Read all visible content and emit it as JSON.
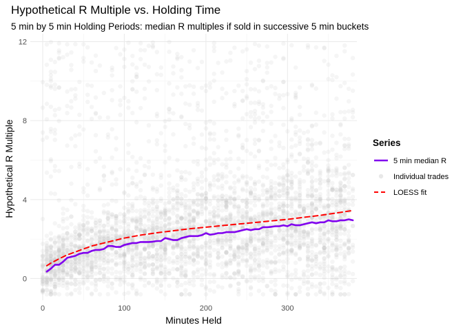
{
  "chart_data": {
    "type": "scatter",
    "title": "Hypothetical R Multiple vs. Holding Time",
    "subtitle": "5 min by 5 min Holding Periods: median R multiples if sold in successive 5 min buckets",
    "xlabel": "Minutes Held",
    "ylabel": "Hypothetical R Multiple",
    "xlim": [
      0,
      385
    ],
    "ylim": [
      -1.1,
      12.4
    ],
    "x_ticks": [
      0,
      100,
      200,
      300
    ],
    "y_ticks": [
      0,
      4,
      8,
      12
    ],
    "grid": true,
    "legend": {
      "title": "Series",
      "position": "right"
    },
    "series": [
      {
        "name": "5 min median R",
        "kind": "line",
        "color": "#8000ee",
        "style": "solid",
        "x": [
          5,
          10,
          15,
          20,
          25,
          30,
          35,
          40,
          45,
          50,
          55,
          60,
          65,
          70,
          75,
          80,
          85,
          90,
          95,
          100,
          105,
          110,
          115,
          120,
          125,
          130,
          135,
          140,
          145,
          150,
          155,
          160,
          165,
          170,
          175,
          180,
          185,
          190,
          195,
          200,
          205,
          210,
          215,
          220,
          225,
          230,
          235,
          240,
          245,
          250,
          255,
          260,
          265,
          270,
          275,
          280,
          285,
          290,
          295,
          300,
          305,
          310,
          315,
          320,
          325,
          330,
          335,
          340,
          345,
          350,
          355,
          360,
          365,
          370,
          375,
          380
        ],
        "y": [
          0.35,
          0.5,
          0.7,
          0.7,
          0.85,
          1.05,
          1.1,
          1.15,
          1.25,
          1.3,
          1.3,
          1.4,
          1.45,
          1.45,
          1.5,
          1.65,
          1.65,
          1.6,
          1.6,
          1.7,
          1.75,
          1.8,
          1.8,
          1.85,
          1.85,
          1.85,
          1.87,
          1.9,
          1.9,
          2.05,
          2.0,
          1.95,
          1.95,
          2.05,
          2.1,
          2.15,
          2.15,
          2.15,
          2.2,
          2.3,
          2.22,
          2.25,
          2.3,
          2.3,
          2.35,
          2.35,
          2.35,
          2.4,
          2.45,
          2.5,
          2.45,
          2.5,
          2.5,
          2.6,
          2.6,
          2.62,
          2.65,
          2.65,
          2.7,
          2.65,
          2.75,
          2.7,
          2.7,
          2.75,
          2.8,
          2.85,
          2.8,
          2.85,
          2.85,
          2.95,
          2.9,
          2.9,
          2.95,
          2.95,
          3.0,
          2.95
        ]
      },
      {
        "name": "Individual trades",
        "kind": "points",
        "color": "#bebebe",
        "opacity": 0.15,
        "x_range": [
          0,
          380
        ],
        "y_range": [
          -0.8,
          12
        ],
        "count": 3500
      },
      {
        "name": "LOESS fit",
        "kind": "line",
        "color": "#ff0000",
        "style": "dashed",
        "x": [
          5,
          10,
          20,
          30,
          40,
          50,
          60,
          80,
          100,
          120,
          140,
          160,
          180,
          200,
          220,
          240,
          260,
          280,
          300,
          320,
          340,
          360,
          380
        ],
        "y": [
          0.65,
          0.78,
          1.0,
          1.2,
          1.35,
          1.5,
          1.65,
          1.85,
          2.05,
          2.2,
          2.32,
          2.42,
          2.52,
          2.6,
          2.68,
          2.76,
          2.84,
          2.92,
          3.0,
          3.1,
          3.2,
          3.32,
          3.45
        ]
      }
    ]
  }
}
